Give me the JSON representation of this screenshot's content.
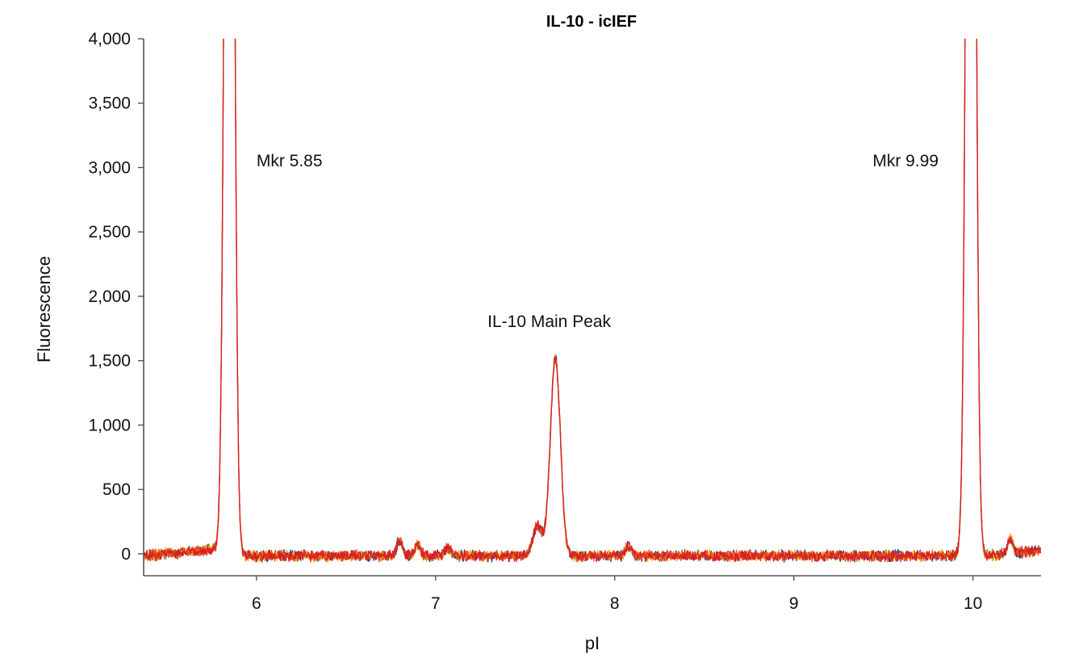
{
  "chart_data": {
    "type": "line",
    "title": "IL-10 - icIEF",
    "xlabel": "pI",
    "ylabel": "Fluorescence",
    "xlim": [
      5.37,
      10.38
    ],
    "ylim": [
      -170,
      4000
    ],
    "xticks": [
      6,
      7,
      8,
      9,
      10
    ],
    "xtick_labels": [
      "6",
      "7",
      "8",
      "9",
      "10"
    ],
    "yticks": [
      0,
      500,
      1000,
      1500,
      2000,
      2500,
      3000,
      3500,
      4000
    ],
    "ytick_labels": [
      "0",
      "500",
      "1,000",
      "1,500",
      "2,000",
      "2,500",
      "3,000",
      "3,500",
      "4,000"
    ],
    "grid": false,
    "legend": "none",
    "colors": [
      "#2e3b7a",
      "#f2b21c",
      "#e8541c",
      "#d81f26"
    ],
    "peaks": [
      {
        "x": 5.85,
        "y": 12000,
        "width": 0.022
      },
      {
        "x": 9.99,
        "y": 12000,
        "width": 0.022
      },
      {
        "x": 7.67,
        "y": 1540,
        "width": 0.028
      },
      {
        "x": 7.57,
        "y": 230,
        "width": 0.025
      },
      {
        "x": 6.8,
        "y": 120,
        "width": 0.015
      },
      {
        "x": 6.9,
        "y": 85,
        "width": 0.017
      },
      {
        "x": 7.07,
        "y": 60,
        "width": 0.018
      },
      {
        "x": 8.08,
        "y": 75,
        "width": 0.018
      },
      {
        "x": 10.21,
        "y": 115,
        "width": 0.015
      }
    ],
    "baseline": {
      "x": [
        5.37,
        5.8,
        5.9,
        9.9,
        10.05,
        10.38
      ],
      "y": [
        -15,
        40,
        -15,
        -15,
        -20,
        30
      ]
    },
    "annotations": [
      {
        "text": "Mkr 5.85",
        "x": 6.0,
        "y": 3010
      },
      {
        "text": "Mkr 9.99",
        "x": 9.44,
        "y": 3010
      },
      {
        "text": "IL-10 Main Peak",
        "x": 7.29,
        "y": 1760
      }
    ]
  }
}
